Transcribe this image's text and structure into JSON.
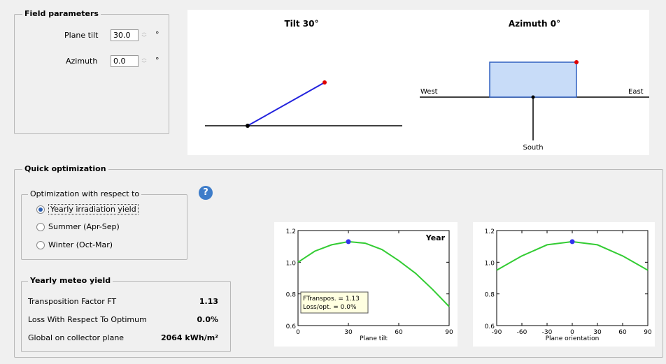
{
  "field_parameters": {
    "title": "Field parameters",
    "plane_tilt_label": "Plane tilt",
    "plane_tilt_value": "30.0",
    "azimuth_label": "Azimuth",
    "azimuth_value": "0.0",
    "unit": "°"
  },
  "orientation_diagram": {
    "tilt_title": "Tilt 30°",
    "azimuth_title": "Azimuth 0°",
    "west_label": "West",
    "east_label": "East",
    "south_label": "South"
  },
  "quick_optimization": {
    "title": "Quick optimization",
    "respect_group_title": "Optimization with respect to",
    "options": [
      {
        "label": "Yearly irradiation yield",
        "checked": true
      },
      {
        "label": "Summer (Apr-Sep)",
        "checked": false
      },
      {
        "label": "Winter (Oct-Mar)",
        "checked": false
      }
    ],
    "help_glyph": "?"
  },
  "meteo_yield": {
    "title": "Yearly meteo yield",
    "rows": [
      {
        "label": "Transposition Factor FT",
        "value": "1.13"
      },
      {
        "label": "Loss With Respect To Optimum",
        "value": "0.0%"
      },
      {
        "label": "Global on collector plane",
        "value": "2064 kWh/m²"
      }
    ]
  },
  "chart_data": [
    {
      "type": "line",
      "title": "Year",
      "xlabel": "Plane tilt",
      "ylabel": "",
      "xlim": [
        0,
        90
      ],
      "ylim": [
        0.6,
        1.2
      ],
      "xticks": [
        "0",
        "30",
        "60",
        "90"
      ],
      "yticks": [
        "0.6",
        "0.8",
        "1.0",
        "1.2"
      ],
      "series": [
        {
          "x": [
            0,
            10,
            20,
            30,
            40,
            50,
            60,
            70,
            80,
            90
          ],
          "y": [
            1.0,
            1.07,
            1.11,
            1.13,
            1.12,
            1.08,
            1.01,
            0.93,
            0.83,
            0.72
          ]
        }
      ],
      "marker": {
        "x": 30,
        "y": 1.13
      },
      "annotation": [
        "FTranspos. = 1.13",
        "Loss/opt. = 0.0%"
      ]
    },
    {
      "type": "line",
      "title": "",
      "xlabel": "Plane orientation",
      "ylabel": "",
      "xlim": [
        -90,
        90
      ],
      "ylim": [
        0.6,
        1.2
      ],
      "xticks": [
        "-90",
        "-60",
        "-30",
        "0",
        "30",
        "60",
        "90"
      ],
      "yticks": [
        "0.6",
        "0.8",
        "1.0",
        "1.2"
      ],
      "series": [
        {
          "x": [
            -90,
            -60,
            -30,
            0,
            30,
            60,
            90
          ],
          "y": [
            0.95,
            1.04,
            1.11,
            1.13,
            1.11,
            1.04,
            0.95
          ]
        }
      ],
      "marker": {
        "x": 0,
        "y": 1.13
      }
    }
  ],
  "colors": {
    "curve": "#33cc33",
    "marker": "#3333ee",
    "tilt_line": "#2222dd",
    "module_fill": "#c8dcf8",
    "module_stroke": "#3060c0",
    "red_dot": "#e00000"
  }
}
